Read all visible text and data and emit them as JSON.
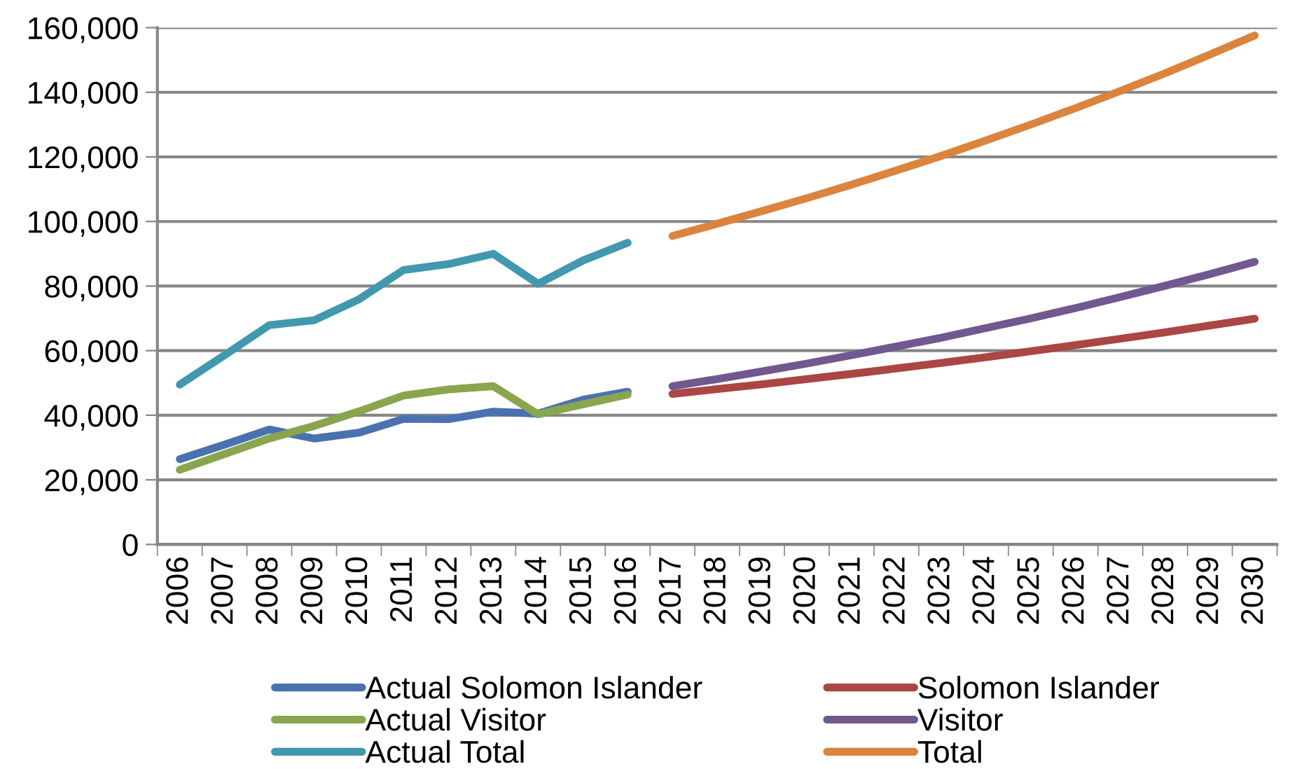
{
  "chart_data": {
    "type": "line",
    "categories": [
      "2006",
      "2007",
      "2008",
      "2009",
      "2010",
      "2011",
      "2012",
      "2013",
      "2014",
      "2015",
      "2016",
      "2017",
      "2018",
      "2019",
      "2020",
      "2021",
      "2022",
      "2023",
      "2024",
      "2025",
      "2026",
      "2027",
      "2028",
      "2029",
      "2030"
    ],
    "ylim": [
      0,
      160000
    ],
    "yticks": [
      {
        "value": 0,
        "label": "0"
      },
      {
        "value": 20000,
        "label": "20,000"
      },
      {
        "value": 40000,
        "label": "40,000"
      },
      {
        "value": 60000,
        "label": "60,000"
      },
      {
        "value": 80000,
        "label": "80,000"
      },
      {
        "value": 100000,
        "label": "100,000"
      },
      {
        "value": 120000,
        "label": "120,000"
      },
      {
        "value": 140000,
        "label": "140,000"
      },
      {
        "value": 160000,
        "label": "160,000"
      }
    ],
    "grid": "y",
    "legend": "bottom",
    "marker": "none",
    "line_style": "solid",
    "series": [
      {
        "name": "Actual Solomon Islander",
        "color": "#4a72b0",
        "values": [
          26400,
          30900,
          35600,
          32800,
          34600,
          38900,
          38800,
          41100,
          40500,
          44800,
          47300,
          null,
          null,
          null,
          null,
          null,
          null,
          null,
          null,
          null,
          null,
          null,
          null,
          null,
          null
        ]
      },
      {
        "name": "Actual Visitor",
        "color": "#89a54e",
        "values": [
          23100,
          28000,
          32800,
          36700,
          41200,
          46100,
          48000,
          49000,
          40300,
          43400,
          46400,
          null,
          null,
          null,
          null,
          null,
          null,
          null,
          null,
          null,
          null,
          null,
          null,
          null,
          null
        ]
      },
      {
        "name": "Actual Total",
        "color": "#4198af",
        "values": [
          49500,
          58600,
          67900,
          69400,
          75900,
          85000,
          86800,
          90000,
          80700,
          87900,
          93400,
          null,
          null,
          null,
          null,
          null,
          null,
          null,
          null,
          null,
          null,
          null,
          null,
          null,
          null
        ]
      },
      {
        "name": "Solomon Islander",
        "color": "#aa4643",
        "values": [
          null,
          null,
          null,
          null,
          null,
          null,
          null,
          null,
          null,
          null,
          null,
          46600,
          48100,
          49600,
          51200,
          52800,
          54500,
          56200,
          58000,
          59800,
          61700,
          63700,
          65700,
          67800,
          69900
        ]
      },
      {
        "name": "Visitor",
        "color": "#71588f",
        "values": [
          null,
          null,
          null,
          null,
          null,
          null,
          null,
          null,
          null,
          null,
          null,
          49000,
          51200,
          53600,
          56000,
          58600,
          61300,
          64000,
          67000,
          70000,
          73200,
          76600,
          80100,
          83700,
          87500
        ]
      },
      {
        "name": "Total",
        "color": "#db843d",
        "values": [
          null,
          null,
          null,
          null,
          null,
          null,
          null,
          null,
          null,
          null,
          null,
          95500,
          99300,
          103200,
          107200,
          111400,
          115800,
          120300,
          125100,
          130000,
          135100,
          140400,
          145900,
          151700,
          157600
        ]
      }
    ]
  }
}
